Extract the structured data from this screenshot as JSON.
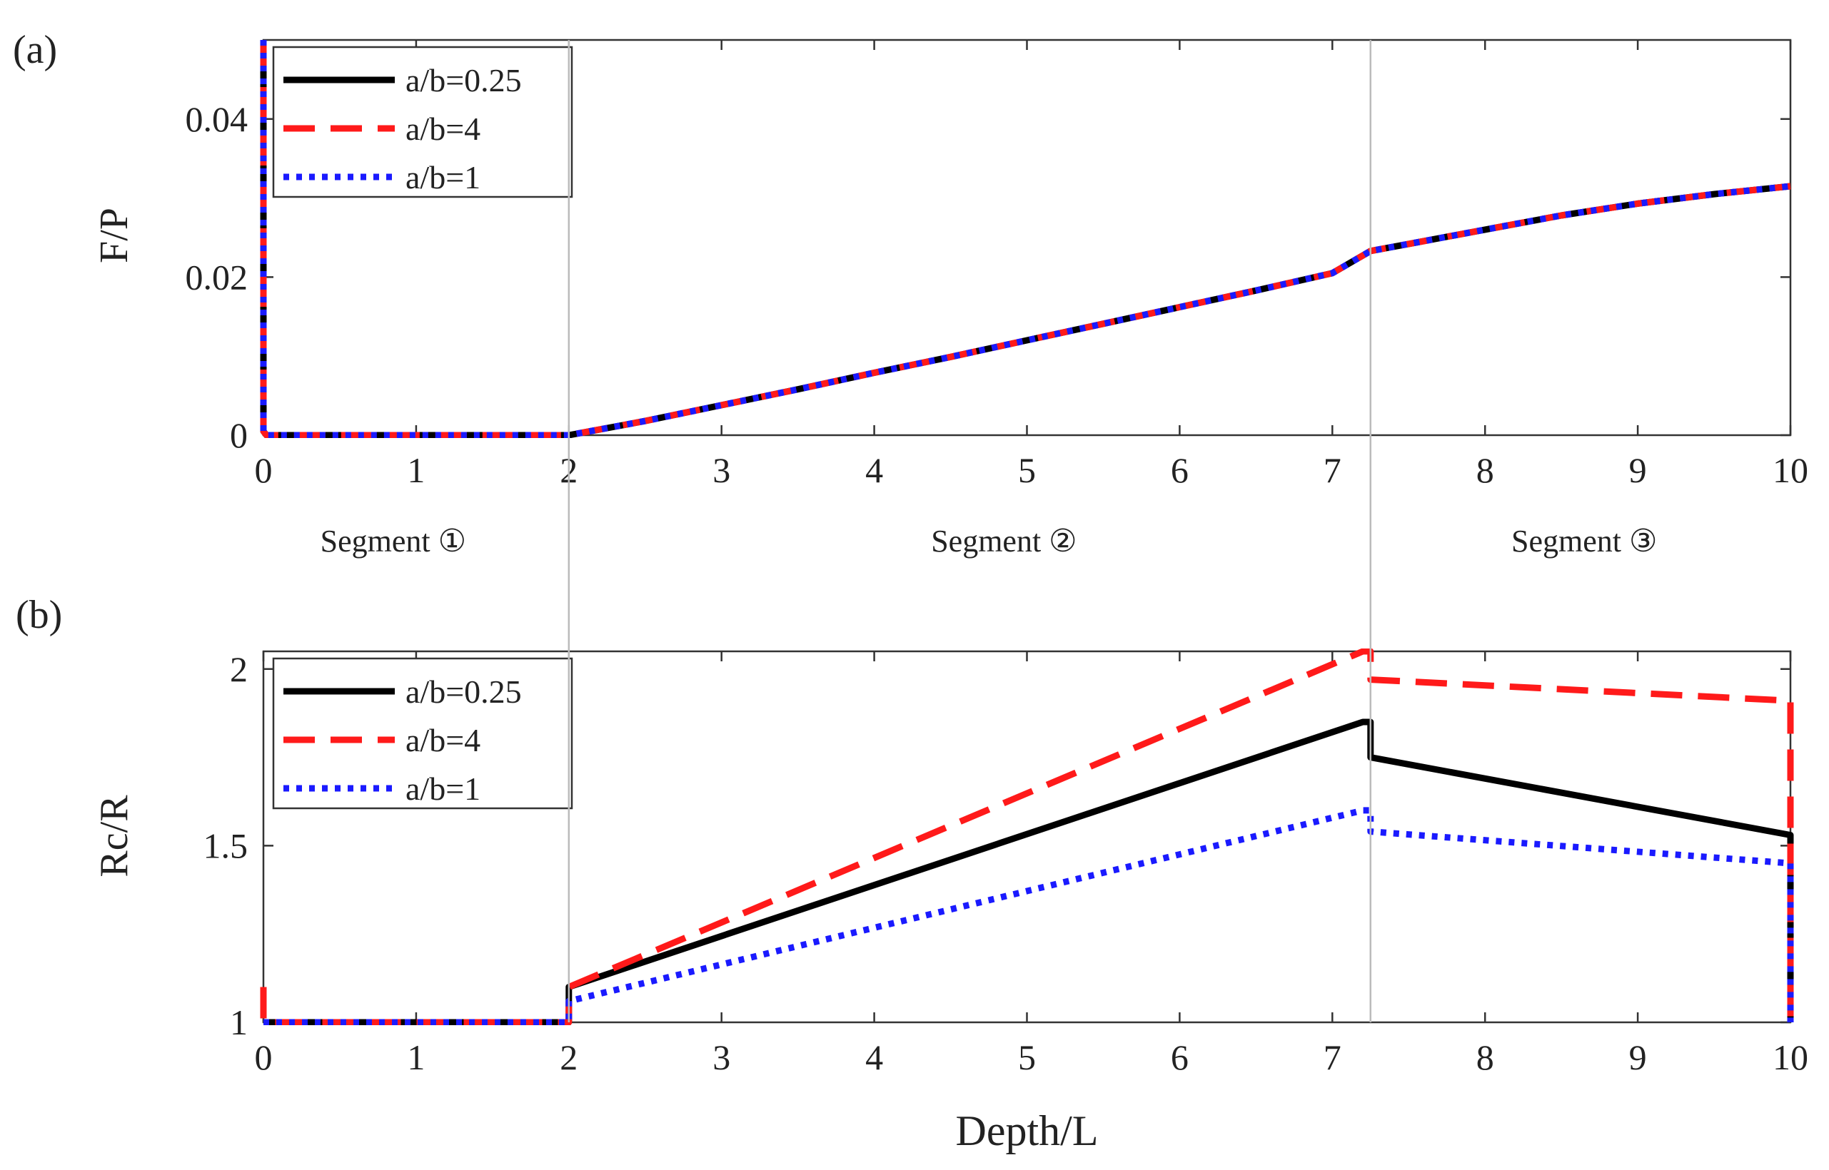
{
  "chart_data": [
    {
      "type": "line",
      "panel_label": "(a)",
      "ylabel": "F/P",
      "xlabel": "",
      "xlim": [
        0,
        10
      ],
      "ylim": [
        0,
        0.05
      ],
      "xticks": [
        0,
        1,
        2,
        3,
        4,
        5,
        6,
        7,
        8,
        9,
        10
      ],
      "xtick_labels": [
        "0",
        "1",
        "2",
        "3",
        "4",
        "5",
        "6",
        "7",
        "8",
        "9",
        "10"
      ],
      "yticks": [
        0,
        0.02,
        0.04
      ],
      "ytick_labels": [
        "0",
        "0.02",
        "0.04"
      ],
      "legend_location": "top-left",
      "series": [
        {
          "name": "a/b=0.25",
          "color": "#000000",
          "style": "solid",
          "x": [
            0,
            0,
            0.02,
            2,
            2.5,
            3,
            3.5,
            4,
            4.5,
            5,
            5.5,
            6,
            6.5,
            7,
            7.25,
            7.5,
            8,
            8.5,
            9,
            9.5,
            10
          ],
          "y": [
            0.05,
            0.0005,
            0,
            0,
            0.0018,
            0.0038,
            0.0058,
            0.0079,
            0.0099,
            0.012,
            0.0141,
            0.0162,
            0.0183,
            0.0205,
            0.0233,
            0.0242,
            0.026,
            0.0278,
            0.0293,
            0.0305,
            0.0315
          ]
        },
        {
          "name": "a/b=4",
          "color": "#ff1a1a",
          "style": "dashed",
          "x": [
            0,
            0,
            0.02,
            2,
            2.5,
            3,
            3.5,
            4,
            4.5,
            5,
            5.5,
            6,
            6.5,
            7,
            7.25,
            7.5,
            8,
            8.5,
            9,
            9.5,
            10
          ],
          "y": [
            0.05,
            0.0005,
            0,
            0,
            0.0018,
            0.0038,
            0.0058,
            0.0079,
            0.0099,
            0.012,
            0.0141,
            0.0162,
            0.0183,
            0.0205,
            0.0233,
            0.0242,
            0.026,
            0.0278,
            0.0293,
            0.0305,
            0.0315
          ]
        },
        {
          "name": "a/b=1",
          "color": "#1a1aff",
          "style": "dotted",
          "x": [
            0,
            0,
            0.02,
            2,
            2.5,
            3,
            3.5,
            4,
            4.5,
            5,
            5.5,
            6,
            6.5,
            7,
            7.25,
            7.5,
            8,
            8.5,
            9,
            9.5,
            10
          ],
          "y": [
            0.05,
            0.0005,
            0,
            0,
            0.0018,
            0.0038,
            0.0058,
            0.0079,
            0.0099,
            0.012,
            0.0141,
            0.0162,
            0.0183,
            0.0205,
            0.0233,
            0.0242,
            0.026,
            0.0278,
            0.0293,
            0.0305,
            0.0315
          ]
        }
      ],
      "vlines": [
        2,
        7.25
      ],
      "segment_labels": [
        {
          "text": "Segment ①",
          "x": 0.85
        },
        {
          "text": "Segment ②",
          "x": 4.85
        },
        {
          "text": "Segment ③",
          "x": 8.65
        }
      ]
    },
    {
      "type": "line",
      "panel_label": "(b)",
      "ylabel": "Rc/R",
      "xlabel": "Depth/L",
      "xlim": [
        0,
        10
      ],
      "ylim": [
        1,
        2.05
      ],
      "xticks": [
        0,
        1,
        2,
        3,
        4,
        5,
        6,
        7,
        8,
        9,
        10
      ],
      "xtick_labels": [
        "0",
        "1",
        "2",
        "3",
        "4",
        "5",
        "6",
        "7",
        "8",
        "9",
        "10"
      ],
      "yticks": [
        1,
        1.5,
        2
      ],
      "ytick_labels": [
        "1",
        "1.5",
        "2"
      ],
      "legend_location": "top-left",
      "series": [
        {
          "name": "a/b=0.25",
          "color": "#000000",
          "style": "solid",
          "x": [
            0,
            2,
            2,
            7.2,
            7.25,
            7.25,
            10,
            10
          ],
          "y": [
            1,
            1,
            1.1,
            1.85,
            1.85,
            1.75,
            1.53,
            1
          ]
        },
        {
          "name": "a/b=4",
          "color": "#ff1a1a",
          "style": "dashed",
          "x": [
            0,
            0,
            2,
            2,
            7.2,
            7.25,
            7.25,
            10,
            10
          ],
          "y": [
            1.1,
            1,
            1,
            1.1,
            2.05,
            2.05,
            1.97,
            1.91,
            1
          ]
        },
        {
          "name": "a/b=1",
          "color": "#1a1aff",
          "style": "dotted",
          "x": [
            0,
            2,
            2,
            7.2,
            7.25,
            7.25,
            10,
            10
          ],
          "y": [
            1,
            1,
            1.06,
            1.6,
            1.6,
            1.54,
            1.45,
            1
          ]
        }
      ],
      "vlines": [
        2,
        7.25
      ]
    }
  ]
}
